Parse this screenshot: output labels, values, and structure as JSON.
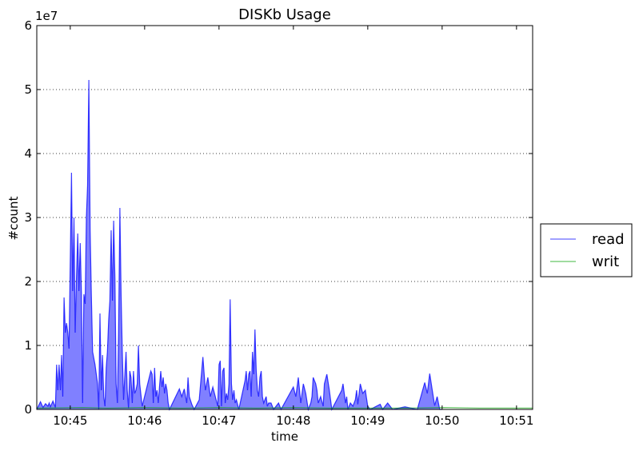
{
  "chart_data": {
    "type": "area",
    "title": "DISKb Usage",
    "xlabel": "time",
    "ylabel": "#count",
    "y_multiplier_label": "1e7",
    "y_scale": 10000000,
    "xlim": [
      "10:44:33",
      "10:51:13"
    ],
    "ylim": [
      0,
      60000000
    ],
    "y_ticks": [
      0,
      10000000,
      20000000,
      30000000,
      40000000,
      50000000,
      60000000
    ],
    "y_tick_labels": [
      "0",
      "1",
      "2",
      "3",
      "4",
      "5",
      "6"
    ],
    "x_ticks": [
      "10:45:00",
      "10:46:00",
      "10:47:00",
      "10:48:00",
      "10:49:00",
      "10:50:00",
      "10:51:00"
    ],
    "x_tick_labels": [
      "10:45",
      "10:46",
      "10:47",
      "10:48",
      "10:49",
      "10:50",
      "10:51"
    ],
    "grid": "y-dotted",
    "legend_placement": "outside-right",
    "series": [
      {
        "name": "read",
        "color": "#0000ff",
        "fill": "#8080ff",
        "points": [
          [
            "10:44:33",
            0
          ],
          [
            "10:44:36",
            1200000
          ],
          [
            "10:44:38",
            300000
          ],
          [
            "10:44:40",
            900000
          ],
          [
            "10:44:42",
            500000
          ],
          [
            "10:44:43",
            1000000
          ],
          [
            "10:44:44",
            400000
          ],
          [
            "10:44:46",
            1300000
          ],
          [
            "10:44:48",
            300000
          ],
          [
            "10:44:49",
            7000000
          ],
          [
            "10:44:50",
            3000000
          ],
          [
            "10:44:51",
            7000000
          ],
          [
            "10:44:52",
            3000000
          ],
          [
            "10:44:53",
            8500000
          ],
          [
            "10:44:54",
            2000000
          ],
          [
            "10:44:55",
            17500000
          ],
          [
            "10:44:56",
            12000000
          ],
          [
            "10:44:57",
            13500000
          ],
          [
            "10:44:58",
            12000000
          ],
          [
            "10:44:59",
            9500000
          ],
          [
            "10:45:00",
            22500000
          ],
          [
            "10:45:01",
            37000000
          ],
          [
            "10:45:02",
            18500000
          ],
          [
            "10:45:03",
            30000000
          ],
          [
            "10:45:04",
            12000000
          ],
          [
            "10:45:05",
            20500000
          ],
          [
            "10:45:06",
            27500000
          ],
          [
            "10:45:07",
            18500000
          ],
          [
            "10:45:08",
            26000000
          ],
          [
            "10:45:09",
            18000000
          ],
          [
            "10:45:10",
            1000000
          ],
          [
            "10:45:11",
            18000000
          ],
          [
            "10:45:12",
            16500000
          ],
          [
            "10:45:13",
            30000000
          ],
          [
            "10:45:14",
            35000000
          ],
          [
            "10:45:15",
            51500000
          ],
          [
            "10:45:16",
            28000000
          ],
          [
            "10:45:17",
            18000000
          ],
          [
            "10:45:18",
            9000000
          ],
          [
            "10:45:20",
            7000000
          ],
          [
            "10:45:22",
            4000000
          ],
          [
            "10:45:23",
            0
          ],
          [
            "10:45:24",
            15000000
          ],
          [
            "10:45:25",
            3000000
          ],
          [
            "10:45:26",
            8500000
          ],
          [
            "10:45:27",
            2000000
          ],
          [
            "10:45:28",
            500000
          ],
          [
            "10:45:29",
            6500000
          ],
          [
            "10:45:30",
            9000000
          ],
          [
            "10:45:31",
            14000000
          ],
          [
            "10:45:32",
            17000000
          ],
          [
            "10:45:33",
            28000000
          ],
          [
            "10:45:34",
            17000000
          ],
          [
            "10:45:35",
            29500000
          ],
          [
            "10:45:36",
            20500000
          ],
          [
            "10:45:37",
            4000000
          ],
          [
            "10:45:38",
            1000000
          ],
          [
            "10:45:39",
            12000000
          ],
          [
            "10:45:40",
            31500000
          ],
          [
            "10:45:41",
            18000000
          ],
          [
            "10:45:42",
            9000000
          ],
          [
            "10:45:43",
            1500000
          ],
          [
            "10:45:45",
            9000000
          ],
          [
            "10:45:46",
            3000000
          ],
          [
            "10:45:47",
            200000
          ],
          [
            "10:45:48",
            6000000
          ],
          [
            "10:45:49",
            5000000
          ],
          [
            "10:45:50",
            1000000
          ],
          [
            "10:45:51",
            6000000
          ],
          [
            "10:45:52",
            2500000
          ],
          [
            "10:45:53",
            3000000
          ],
          [
            "10:45:54",
            4000000
          ],
          [
            "10:45:55",
            10000000
          ],
          [
            "10:45:56",
            4000000
          ],
          [
            "10:45:58",
            500000
          ],
          [
            "10:46:05",
            6000000
          ],
          [
            "10:46:06",
            5500000
          ],
          [
            "10:46:07",
            1000000
          ],
          [
            "10:46:08",
            6500000
          ],
          [
            "10:46:09",
            2000000
          ],
          [
            "10:46:10",
            3000000
          ],
          [
            "10:46:11",
            1000000
          ],
          [
            "10:46:12",
            3500000
          ],
          [
            "10:46:13",
            6000000
          ],
          [
            "10:46:14",
            3500000
          ],
          [
            "10:46:15",
            5000000
          ],
          [
            "10:46:16",
            2500000
          ],
          [
            "10:46:17",
            4000000
          ],
          [
            "10:46:18",
            3000000
          ],
          [
            "10:46:19",
            1000000
          ],
          [
            "10:46:20",
            0
          ],
          [
            "10:46:28",
            3200000
          ],
          [
            "10:46:30",
            2000000
          ],
          [
            "10:46:32",
            3200000
          ],
          [
            "10:46:34",
            1000000
          ],
          [
            "10:46:35",
            5000000
          ],
          [
            "10:46:36",
            2000000
          ],
          [
            "10:46:38",
            800000
          ],
          [
            "10:46:40",
            0
          ],
          [
            "10:46:44",
            1500000
          ],
          [
            "10:46:47",
            8200000
          ],
          [
            "10:46:49",
            3000000
          ],
          [
            "10:46:51",
            5000000
          ],
          [
            "10:46:53",
            2000000
          ],
          [
            "10:46:55",
            3500000
          ],
          [
            "10:46:57",
            2000000
          ],
          [
            "10:46:59",
            500000
          ],
          [
            "10:47:00",
            7000000
          ],
          [
            "10:47:01",
            7600000
          ],
          [
            "10:47:02",
            500000
          ],
          [
            "10:47:03",
            6000000
          ],
          [
            "10:47:04",
            6500000
          ],
          [
            "10:47:05",
            1000000
          ],
          [
            "10:47:06",
            2500000
          ],
          [
            "10:47:07",
            1500000
          ],
          [
            "10:47:08",
            4000000
          ],
          [
            "10:47:09",
            17200000
          ],
          [
            "10:47:10",
            4000000
          ],
          [
            "10:47:11",
            1500000
          ],
          [
            "10:47:12",
            3000000
          ],
          [
            "10:47:13",
            1000000
          ],
          [
            "10:47:14",
            1500000
          ],
          [
            "10:47:16",
            0
          ],
          [
            "10:47:21",
            4500000
          ],
          [
            "10:47:22",
            6000000
          ],
          [
            "10:47:23",
            3000000
          ],
          [
            "10:47:24",
            5500000
          ],
          [
            "10:47:25",
            6000000
          ],
          [
            "10:47:26",
            2000000
          ],
          [
            "10:47:27",
            9000000
          ],
          [
            "10:47:28",
            5500000
          ],
          [
            "10:47:29",
            12500000
          ],
          [
            "10:47:30",
            6000000
          ],
          [
            "10:47:31",
            3000000
          ],
          [
            "10:47:32",
            2000000
          ],
          [
            "10:47:33",
            5000000
          ],
          [
            "10:47:34",
            6000000
          ],
          [
            "10:47:35",
            2000000
          ],
          [
            "10:47:36",
            1000000
          ],
          [
            "10:47:38",
            2000000
          ],
          [
            "10:47:39",
            500000
          ],
          [
            "10:47:40",
            1000000
          ],
          [
            "10:47:42",
            1000000
          ],
          [
            "10:47:44",
            0
          ],
          [
            "10:47:48",
            1000000
          ],
          [
            "10:47:50",
            0
          ],
          [
            "10:48:00",
            3500000
          ],
          [
            "10:48:02",
            2000000
          ],
          [
            "10:48:04",
            5000000
          ],
          [
            "10:48:06",
            1000000
          ],
          [
            "10:48:08",
            4000000
          ],
          [
            "10:48:10",
            2500000
          ],
          [
            "10:48:12",
            0
          ],
          [
            "10:48:14",
            1000000
          ],
          [
            "10:48:15",
            2000000
          ],
          [
            "10:48:16",
            5000000
          ],
          [
            "10:48:18",
            4000000
          ],
          [
            "10:48:19",
            3000000
          ],
          [
            "10:48:20",
            1000000
          ],
          [
            "10:48:22",
            2000000
          ],
          [
            "10:48:24",
            500000
          ],
          [
            "10:48:25",
            4000000
          ],
          [
            "10:48:27",
            5500000
          ],
          [
            "10:48:29",
            3000000
          ],
          [
            "10:48:31",
            0
          ],
          [
            "10:48:39",
            3000000
          ],
          [
            "10:48:40",
            4000000
          ],
          [
            "10:48:42",
            1000000
          ],
          [
            "10:48:43",
            2000000
          ],
          [
            "10:48:44",
            0
          ],
          [
            "10:48:46",
            1000000
          ],
          [
            "10:48:48",
            500000
          ],
          [
            "10:48:50",
            1500000
          ],
          [
            "10:48:51",
            3000000
          ],
          [
            "10:48:52",
            800000
          ],
          [
            "10:48:54",
            4000000
          ],
          [
            "10:48:56",
            2500000
          ],
          [
            "10:48:58",
            3000000
          ],
          [
            "10:49:00",
            500000
          ],
          [
            "10:49:02",
            0
          ],
          [
            "10:49:10",
            800000
          ],
          [
            "10:49:12",
            0
          ],
          [
            "10:49:16",
            1000000
          ],
          [
            "10:49:20",
            0
          ],
          [
            "10:49:30",
            400000
          ],
          [
            "10:49:40",
            0
          ],
          [
            "10:49:46",
            4200000
          ],
          [
            "10:49:48",
            2500000
          ],
          [
            "10:49:50",
            5600000
          ],
          [
            "10:49:52",
            3000000
          ],
          [
            "10:49:54",
            600000
          ],
          [
            "10:49:56",
            2000000
          ],
          [
            "10:49:58",
            0
          ],
          [
            "10:50:00",
            0
          ]
        ]
      },
      {
        "name": "writ",
        "color": "#00a000",
        "fill": "none",
        "points": [
          [
            "10:44:33",
            200000
          ],
          [
            "10:45:10",
            300000
          ],
          [
            "10:45:30",
            200000
          ],
          [
            "10:46:00",
            300000
          ],
          [
            "10:46:30",
            200000
          ],
          [
            "10:47:00",
            300000
          ],
          [
            "10:47:30",
            200000
          ],
          [
            "10:48:00",
            300000
          ],
          [
            "10:48:30",
            200000
          ],
          [
            "10:49:00",
            200000
          ],
          [
            "10:49:30",
            200000
          ],
          [
            "10:50:00",
            300000
          ],
          [
            "10:50:30",
            200000
          ],
          [
            "10:51:13",
            200000
          ]
        ]
      }
    ]
  }
}
